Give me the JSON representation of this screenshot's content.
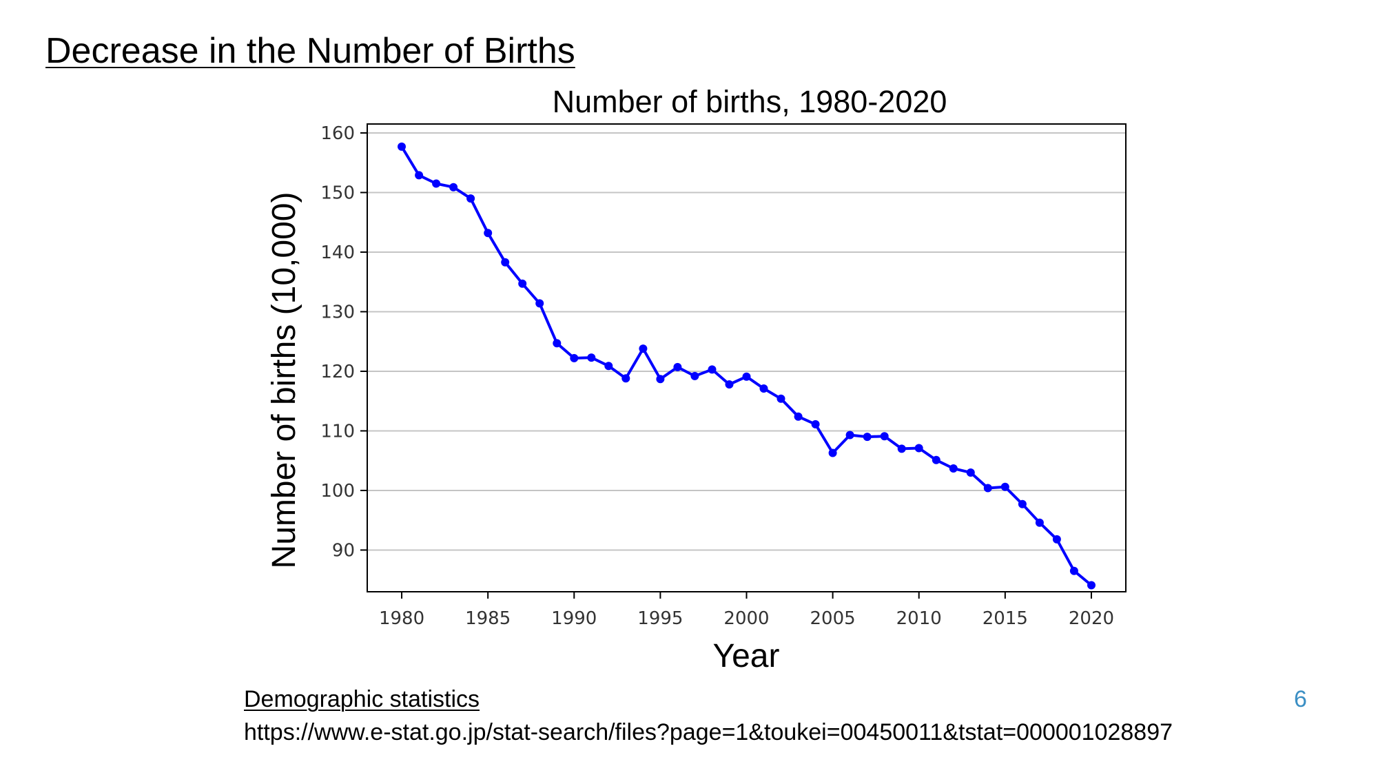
{
  "slide": {
    "title": "Decrease in the Number of Births",
    "source_title": "Demographic statistics",
    "source_url": "https://www.e-stat.go.jp/stat-search/files?page=1&toukei=00450011&tstat=000001028897",
    "page_number": "6",
    "page_number_color": "#3b8fc4"
  },
  "chart_data": {
    "type": "line",
    "title": "Number of births, 1980-2020",
    "xlabel": "Year",
    "ylabel": "Number of births (10,000)",
    "xlim": [
      1978,
      2022
    ],
    "ylim": [
      83,
      161.5
    ],
    "xticks": [
      1980,
      1985,
      1990,
      1995,
      2000,
      2005,
      2010,
      2015,
      2020
    ],
    "yticks": [
      90,
      100,
      110,
      120,
      130,
      140,
      150,
      160
    ],
    "grid": "horizontal",
    "line_color": "#0000ff",
    "series": [
      {
        "x": [
          1980,
          1981,
          1982,
          1983,
          1984,
          1985,
          1986,
          1987,
          1988,
          1989,
          1990,
          1991,
          1992,
          1993,
          1994,
          1995,
          1996,
          1997,
          1998,
          1999,
          2000,
          2001,
          2002,
          2003,
          2004,
          2005,
          2006,
          2007,
          2008,
          2009,
          2010,
          2011,
          2012,
          2013,
          2014,
          2015,
          2016,
          2017,
          2018,
          2019,
          2020
        ],
        "values": [
          157.7,
          152.9,
          151.5,
          150.9,
          149.0,
          143.2,
          138.3,
          134.7,
          131.4,
          124.7,
          122.2,
          122.3,
          120.9,
          118.8,
          123.8,
          118.7,
          120.7,
          119.2,
          120.3,
          117.8,
          119.1,
          117.1,
          115.4,
          112.4,
          111.1,
          106.3,
          109.3,
          109.0,
          109.1,
          107.0,
          107.1,
          105.1,
          103.7,
          103.0,
          100.4,
          100.6,
          97.7,
          94.6,
          91.8,
          86.5,
          84.1
        ]
      }
    ]
  }
}
